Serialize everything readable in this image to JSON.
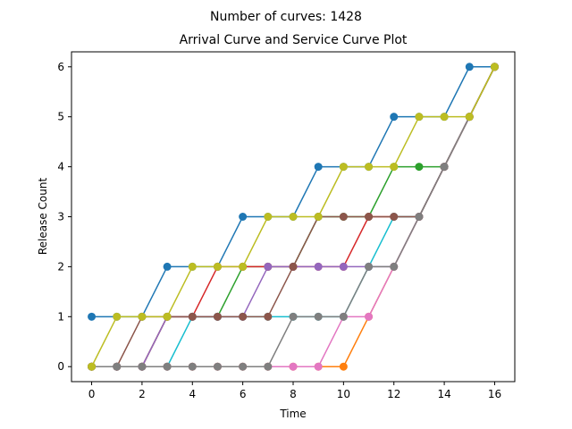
{
  "chart_data": {
    "type": "line",
    "suptitle": "Number of curves: 1428",
    "title": "Arrival Curve and Service Curve Plot",
    "xlabel": "Time",
    "ylabel": "Release Count",
    "xlim": [
      -0.8,
      16.8
    ],
    "ylim": [
      -0.3,
      6.3
    ],
    "xticks": [
      0,
      2,
      4,
      6,
      8,
      10,
      12,
      14,
      16
    ],
    "yticks": [
      0,
      1,
      2,
      3,
      4,
      5,
      6
    ],
    "grid": false,
    "legend": "none",
    "series": [
      {
        "color": "#1f77b4",
        "marker": "circle",
        "x": [
          0,
          1,
          2,
          3,
          4,
          5,
          6,
          7,
          8,
          9,
          10,
          11,
          12,
          13,
          14,
          15,
          16
        ],
        "y": [
          1,
          1,
          1,
          2,
          2,
          2,
          3,
          3,
          3,
          4,
          4,
          4,
          5,
          5,
          5,
          6,
          6
        ]
      },
      {
        "color": "#2ca02c",
        "marker": "circle",
        "x": [
          0,
          1,
          2,
          3,
          4,
          5,
          6,
          7,
          8,
          9,
          10,
          11,
          12,
          13,
          14,
          15,
          16
        ],
        "y": [
          0,
          0,
          0,
          1,
          1,
          1,
          2,
          2,
          2,
          3,
          3,
          3,
          4,
          4,
          4,
          5,
          6
        ]
      },
      {
        "color": "#d62728",
        "marker": "circle",
        "x": [
          0,
          1,
          2,
          3,
          4,
          5,
          6,
          7,
          8,
          9,
          10,
          11,
          12,
          13,
          14,
          15,
          16
        ],
        "y": [
          0,
          0,
          0,
          1,
          1,
          2,
          2,
          2,
          2,
          2,
          2,
          3,
          3,
          3,
          4,
          5,
          6
        ]
      },
      {
        "color": "#17becf",
        "marker": "circle",
        "x": [
          0,
          1,
          2,
          3,
          4,
          5,
          6,
          7,
          8,
          9,
          10,
          11,
          12,
          13,
          14,
          15,
          16
        ],
        "y": [
          0,
          0,
          0,
          0,
          1,
          1,
          1,
          1,
          1,
          1,
          1,
          2,
          3,
          3,
          4,
          5,
          6
        ]
      },
      {
        "color": "#ff7f0e",
        "marker": "circle",
        "x": [
          0,
          1,
          2,
          3,
          4,
          5,
          6,
          7,
          8,
          9,
          10,
          11,
          12,
          13,
          14,
          15,
          16
        ],
        "y": [
          0,
          0,
          0,
          0,
          0,
          0,
          0,
          0,
          0,
          0,
          0,
          1,
          2,
          3,
          4,
          5,
          6
        ]
      },
      {
        "color": "#9467bd",
        "marker": "circle",
        "x": [
          0,
          1,
          2,
          3,
          4,
          5,
          6,
          7,
          8,
          9,
          10,
          11,
          12,
          13,
          14,
          15,
          16
        ],
        "y": [
          0,
          0,
          0,
          1,
          1,
          1,
          1,
          2,
          2,
          2,
          2,
          2,
          2,
          3,
          4,
          5,
          6
        ]
      },
      {
        "color": "#e377c2",
        "marker": "circle",
        "x": [
          0,
          1,
          2,
          3,
          4,
          5,
          6,
          7,
          8,
          9,
          10,
          11,
          12,
          13,
          14,
          15,
          16
        ],
        "y": [
          0,
          0,
          0,
          0,
          0,
          0,
          0,
          0,
          0,
          0,
          1,
          1,
          2,
          3,
          4,
          5,
          6
        ]
      },
      {
        "color": "#8c564b",
        "marker": "circle",
        "x": [
          0,
          1,
          2,
          3,
          4,
          5,
          6,
          7,
          8,
          9,
          10,
          11,
          12,
          13,
          14,
          15,
          16
        ],
        "y": [
          0,
          0,
          1,
          1,
          1,
          1,
          1,
          1,
          2,
          3,
          3,
          3,
          3,
          3,
          4,
          5,
          6
        ]
      },
      {
        "color": "#7f7f7f",
        "marker": "circle",
        "x": [
          0,
          1,
          2,
          3,
          4,
          5,
          6,
          7,
          8,
          9,
          10,
          11,
          12,
          13,
          14,
          15,
          16
        ],
        "y": [
          0,
          0,
          0,
          0,
          0,
          0,
          0,
          0,
          1,
          1,
          1,
          2,
          2,
          3,
          4,
          5,
          6
        ]
      },
      {
        "color": "#bcbd22",
        "marker": "circle",
        "x": [
          0,
          1,
          2,
          3,
          4,
          5,
          6,
          7,
          8,
          9,
          10,
          11,
          12,
          13,
          14,
          15,
          16
        ],
        "y": [
          0,
          1,
          1,
          1,
          2,
          2,
          2,
          3,
          3,
          3,
          4,
          4,
          4,
          5,
          5,
          5,
          6
        ]
      }
    ]
  }
}
